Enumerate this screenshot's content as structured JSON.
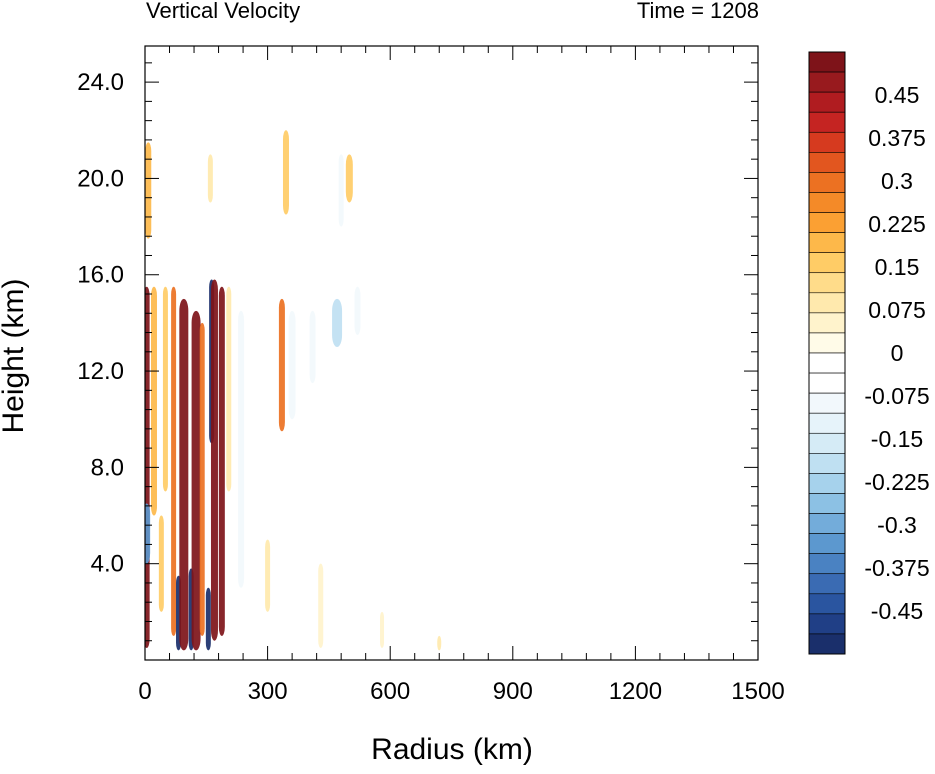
{
  "chart_data": {
    "type": "heatmap",
    "title_left": "Vertical Velocity",
    "title_right": "Time = 1208",
    "xlabel": "Radius (km)",
    "ylabel": "Height (km)",
    "xlim": [
      0,
      1500
    ],
    "ylim": [
      0,
      25.5
    ],
    "x_ticks": [
      "0",
      "300",
      "600",
      "900",
      "1200",
      "1500"
    ],
    "x_tick_values": [
      0,
      300,
      600,
      900,
      1200,
      1500
    ],
    "y_ticks": [
      "4.0",
      "8.0",
      "12.0",
      "16.0",
      "20.0",
      "24.0"
    ],
    "y_tick_values": [
      4,
      8,
      12,
      16,
      20,
      24
    ],
    "colorbar": {
      "min": -0.525,
      "max": 0.525,
      "step": 0.025,
      "tick_labels": [
        "0.45",
        "0.375",
        "0.3",
        "0.225",
        "0.15",
        "0.075",
        "0",
        "-0.075",
        "-0.15",
        "-0.225",
        "-0.3",
        "-0.375",
        "-0.45"
      ],
      "tick_values": [
        0.45,
        0.375,
        0.3,
        0.225,
        0.15,
        0.075,
        0,
        -0.075,
        -0.15,
        -0.225,
        -0.3,
        -0.375,
        -0.45
      ],
      "colors": [
        "#1a2f6b",
        "#203f86",
        "#2a55a0",
        "#3a6bb3",
        "#4a82c2",
        "#5c98cf",
        "#73acda",
        "#8cc1e4",
        "#a6d2ec",
        "#bfe0f2",
        "#d5ebf6",
        "#e6f3fa",
        "#f2f8fc",
        "#ffffff",
        "#ffffff",
        "#fffbe8",
        "#fff3cc",
        "#ffe9ad",
        "#ffdc8a",
        "#ffcc66",
        "#fdb84a",
        "#fba033",
        "#f48a28",
        "#ec7122",
        "#e2561f",
        "#d63a1f",
        "#c52422",
        "#b01c20",
        "#981a1e",
        "#7e1319"
      ]
    },
    "features": [
      {
        "r": 4,
        "z0": 0.5,
        "z1": 15.5,
        "w": 6,
        "value": 0.5
      },
      {
        "r": 4,
        "z0": 4.0,
        "z1": 6.5,
        "w": 7,
        "value": -0.35
      },
      {
        "r": 8,
        "z0": 17.5,
        "z1": 21.5,
        "w": 6,
        "value": 0.2
      },
      {
        "r": 22,
        "z0": 6.0,
        "z1": 15.5,
        "w": 6,
        "value": 0.2
      },
      {
        "r": 50,
        "z0": 7.0,
        "z1": 15.5,
        "w": 5,
        "value": 0.15
      },
      {
        "r": 70,
        "z0": 1.0,
        "z1": 15.5,
        "w": 5,
        "value": 0.3
      },
      {
        "r": 82,
        "z0": 0.4,
        "z1": 3.5,
        "w": 5,
        "value": -0.5
      },
      {
        "r": 95,
        "z0": 0.4,
        "z1": 15.0,
        "w": 9,
        "value": 0.5
      },
      {
        "r": 113,
        "z0": 0.4,
        "z1": 3.8,
        "w": 5,
        "value": -0.5
      },
      {
        "r": 125,
        "z0": 0.4,
        "z1": 14.5,
        "w": 9,
        "value": 0.5
      },
      {
        "r": 140,
        "z0": 1.0,
        "z1": 14.0,
        "w": 5,
        "value": 0.3
      },
      {
        "r": 155,
        "z0": 0.4,
        "z1": 3.0,
        "w": 5,
        "value": -0.5
      },
      {
        "r": 163,
        "z0": 9.0,
        "z1": 15.8,
        "w": 5,
        "value": -0.5
      },
      {
        "r": 170,
        "z0": 0.8,
        "z1": 15.8,
        "w": 7,
        "value": 0.5
      },
      {
        "r": 188,
        "z0": 1.0,
        "z1": 15.5,
        "w": 6,
        "value": 0.5
      },
      {
        "r": 205,
        "z0": 7.0,
        "z1": 15.5,
        "w": 5,
        "value": 0.1
      },
      {
        "r": 235,
        "z0": 3.0,
        "z1": 14.5,
        "w": 6,
        "value": -0.08
      },
      {
        "r": 255,
        "z0": 8.0,
        "z1": 14.0,
        "w": 5,
        "value": -0.06
      },
      {
        "r": 335,
        "z0": 9.5,
        "z1": 15.0,
        "w": 6,
        "value": 0.3
      },
      {
        "r": 345,
        "z0": 18.5,
        "z1": 22.0,
        "w": 6,
        "value": 0.15
      },
      {
        "r": 360,
        "z0": 10.0,
        "z1": 14.5,
        "w": 7,
        "value": -0.1
      },
      {
        "r": 410,
        "z0": 11.5,
        "z1": 14.5,
        "w": 6,
        "value": -0.1
      },
      {
        "r": 470,
        "z0": 13.0,
        "z1": 15.0,
        "w": 10,
        "value": -0.2
      },
      {
        "r": 500,
        "z0": 19.0,
        "z1": 21.0,
        "w": 7,
        "value": 0.15
      },
      {
        "r": 480,
        "z0": 18.0,
        "z1": 21.0,
        "w": 5,
        "value": -0.08
      },
      {
        "r": 520,
        "z0": 13.5,
        "z1": 15.5,
        "w": 6,
        "value": -0.08
      },
      {
        "r": 260,
        "z0": 17.5,
        "z1": 20.5,
        "w": 5,
        "value": -0.06
      },
      {
        "r": 160,
        "z0": 19.0,
        "z1": 21.0,
        "w": 5,
        "value": 0.08
      },
      {
        "r": 40,
        "z0": 2.0,
        "z1": 6.0,
        "w": 5,
        "value": 0.15
      },
      {
        "r": 300,
        "z0": 2.0,
        "z1": 5.0,
        "w": 5,
        "value": 0.08
      },
      {
        "r": 430,
        "z0": 0.5,
        "z1": 4.0,
        "w": 5,
        "value": 0.06
      },
      {
        "r": 720,
        "z0": 0.4,
        "z1": 1.0,
        "w": 4,
        "value": 0.1
      },
      {
        "r": 720,
        "z0": 10.0,
        "z1": 12.0,
        "w": 4,
        "value": -0.05
      },
      {
        "r": 580,
        "z0": 0.5,
        "z1": 2.0,
        "w": 4,
        "value": 0.06
      }
    ]
  }
}
